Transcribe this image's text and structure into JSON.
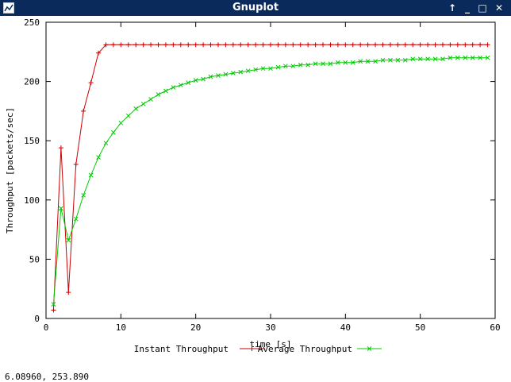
{
  "window": {
    "title": "Gnuplot",
    "controls": [
      {
        "name": "maximize-button",
        "glyph": "↑"
      },
      {
        "name": "minimize-button",
        "glyph": "_"
      },
      {
        "name": "restore-button",
        "glyph": "□"
      },
      {
        "name": "close-button",
        "glyph": "✕"
      }
    ]
  },
  "status_bar": {
    "coordinates": "6.08960,  253.890"
  },
  "chart_data": {
    "type": "line",
    "xlabel": "time [s]",
    "ylabel": "Throughput [packets/sec]",
    "xlim": [
      0,
      60
    ],
    "ylim": [
      0,
      250
    ],
    "xticks": [
      0,
      10,
      20,
      30,
      40,
      50,
      60
    ],
    "yticks": [
      0,
      50,
      100,
      150,
      200,
      250
    ],
    "grid": false,
    "legend": "bottom-center",
    "series": [
      {
        "name": "Instant Throughput",
        "color": "#cc0000",
        "marker": "plus",
        "x": [
          1,
          2,
          3,
          4,
          5,
          6,
          7,
          8,
          9,
          10,
          11,
          12,
          13,
          14,
          15,
          16,
          17,
          18,
          19,
          20,
          21,
          22,
          23,
          24,
          25,
          26,
          27,
          28,
          29,
          30,
          31,
          32,
          33,
          34,
          35,
          36,
          37,
          38,
          39,
          40,
          41,
          42,
          43,
          44,
          45,
          46,
          47,
          48,
          49,
          50,
          51,
          52,
          53,
          54,
          55,
          56,
          57,
          58,
          59
        ],
        "values": [
          7,
          144,
          22,
          130,
          175,
          199,
          224,
          231,
          231,
          231,
          231,
          231,
          231,
          231,
          231,
          231,
          231,
          231,
          231,
          231,
          231,
          231,
          231,
          231,
          231,
          231,
          231,
          231,
          231,
          231,
          231,
          231,
          231,
          231,
          231,
          231,
          231,
          231,
          231,
          231,
          231,
          231,
          231,
          231,
          231,
          231,
          231,
          231,
          231,
          231,
          231,
          231,
          231,
          231,
          231,
          231,
          231,
          231,
          231
        ]
      },
      {
        "name": "Average Throughput",
        "color": "#00cc00",
        "marker": "cross",
        "x": [
          1,
          2,
          3,
          4,
          5,
          6,
          7,
          8,
          9,
          10,
          11,
          12,
          13,
          14,
          15,
          16,
          17,
          18,
          19,
          20,
          21,
          22,
          23,
          24,
          25,
          26,
          27,
          28,
          29,
          30,
          31,
          32,
          33,
          34,
          35,
          36,
          37,
          38,
          39,
          40,
          41,
          42,
          43,
          44,
          45,
          46,
          47,
          48,
          49,
          50,
          51,
          52,
          53,
          54,
          55,
          56,
          57,
          58,
          59
        ],
        "values": [
          12,
          93,
          66,
          84,
          104,
          121,
          136,
          148,
          157,
          165,
          171,
          177,
          181,
          185,
          189,
          192,
          195,
          197,
          199,
          201,
          202,
          204,
          205,
          206,
          207,
          208,
          209,
          210,
          211,
          211,
          212,
          213,
          213,
          214,
          214,
          215,
          215,
          215,
          216,
          216,
          216,
          217,
          217,
          217,
          218,
          218,
          218,
          218,
          219,
          219,
          219,
          219,
          219,
          220,
          220,
          220,
          220,
          220,
          220
        ]
      }
    ]
  }
}
